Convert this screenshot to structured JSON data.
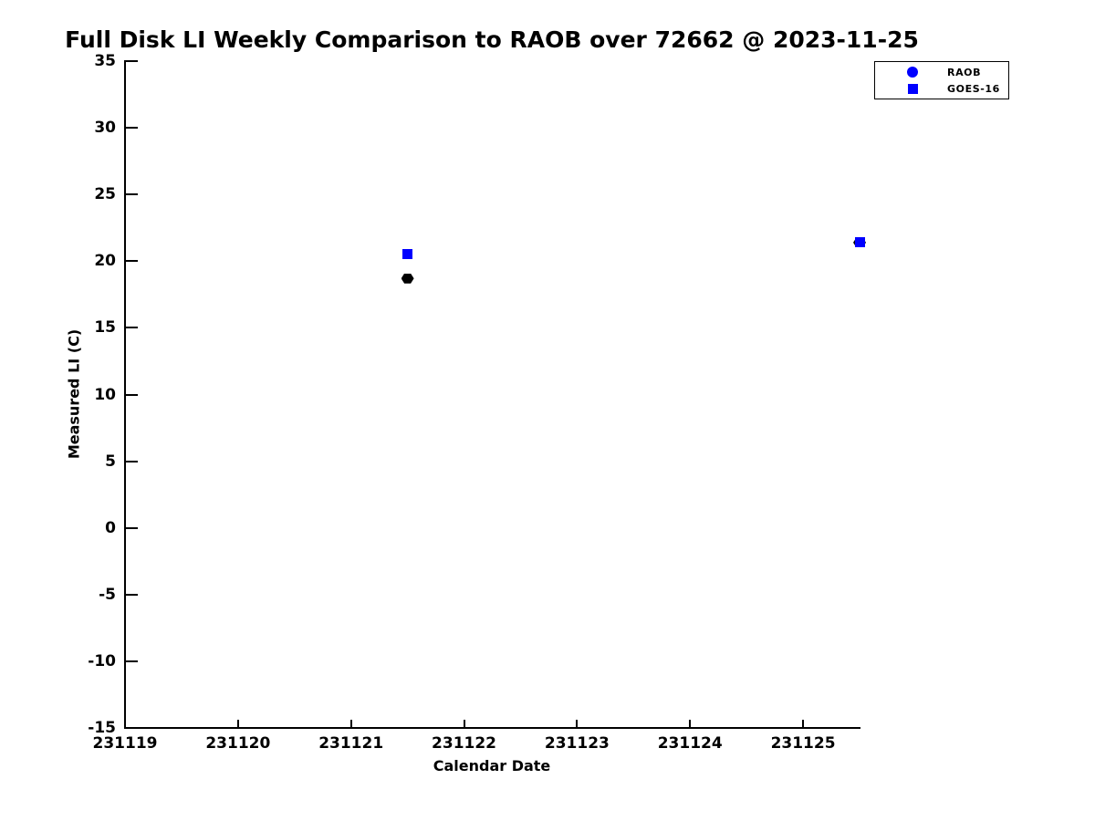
{
  "title": "Full Disk LI Weekly Comparison to RAOB over 72662 @ 2023-11-25",
  "chart_data": {
    "type": "scatter",
    "title": "Full Disk LI Weekly Comparison to RAOB over 72662 @ 2023-11-25",
    "xlabel": "Calendar Date",
    "ylabel": "Measured LI (C)",
    "xlim": [
      231119,
      231125.5
    ],
    "ylim": [
      -15,
      35
    ],
    "xticks": [
      231119,
      231120,
      231121,
      231122,
      231123,
      231124,
      231125
    ],
    "yticks": [
      -15,
      -10,
      -5,
      0,
      5,
      10,
      15,
      20,
      25,
      30,
      35
    ],
    "grid": false,
    "legend_position": "top-right-outside-plot",
    "series": [
      {
        "name": "RAOB",
        "marker": "hexagon",
        "data_color": "#000000",
        "legend_marker": "circle",
        "legend_color": "#0000ff",
        "points": [
          {
            "x": 231121.5,
            "y": 18.7
          },
          {
            "x": 231125.5,
            "y": 21.4
          }
        ]
      },
      {
        "name": "GOES-16",
        "marker": "square",
        "data_color": "#0000ff",
        "legend_marker": "square",
        "legend_color": "#0000ff",
        "points": [
          {
            "x": 231121.5,
            "y": 20.5
          },
          {
            "x": 231125.5,
            "y": 21.4
          }
        ]
      }
    ]
  },
  "colors": {
    "background": "#ffffff",
    "axis": "#000000",
    "accent_blue": "#0000ff",
    "marker_black": "#000000"
  }
}
